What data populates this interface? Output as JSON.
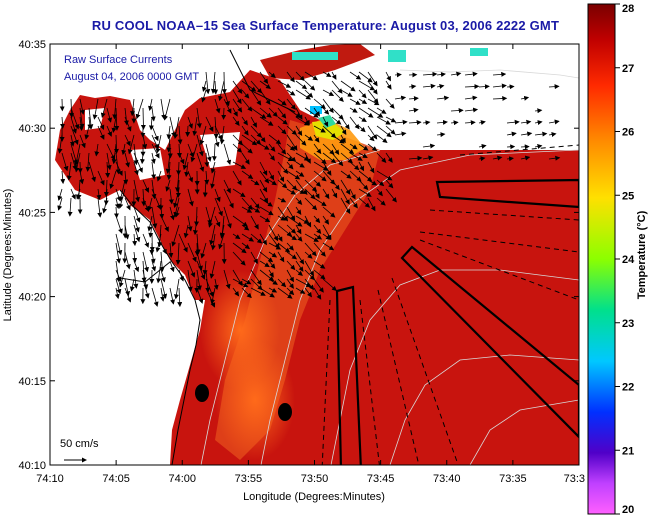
{
  "title": "RU COOL  NOAA–15  Sea Surface Temperature:  August 03, 2006 2222 GMT",
  "annotations": {
    "currents_label": "Raw Surface Currents",
    "currents_time": "August 04, 2006 0000 GMT",
    "scale_label": "50 cm/s"
  },
  "axes": {
    "x_label": "Longitude (Degrees:Minutes)",
    "y_label": "Latitude (Degrees:Minutes)",
    "x_ticks": [
      "74:10",
      "74:05",
      "74:00",
      "73:55",
      "73:50",
      "73:45",
      "73:40",
      "73:35",
      "73:3"
    ],
    "y_ticks": [
      "40:35",
      "40:30",
      "40:25",
      "40:20",
      "40:15",
      "40:10"
    ]
  },
  "colorbar": {
    "label": "Temperature (°C)",
    "ticks": [
      "28",
      "27",
      "26",
      "25",
      "24",
      "23",
      "22",
      "21",
      "20"
    ],
    "min": 20,
    "max": 28,
    "scale": "rainbow"
  },
  "colors": {
    "title": "#1a1aa6",
    "warm_water": "#c8140e",
    "land": "#ffffff"
  }
}
